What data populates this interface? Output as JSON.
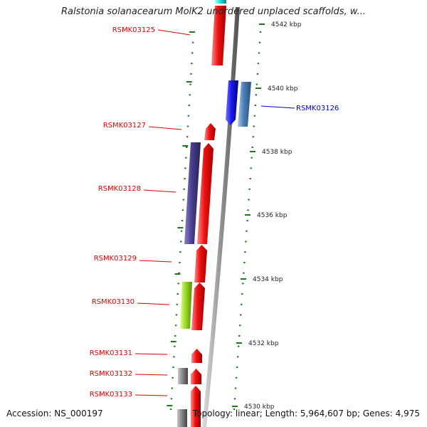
{
  "title": "Ralstonia solanacearum MolK2 unordered unplaced scaffolds, w...",
  "footer": {
    "accession": "Accession: NS_000197",
    "topology": "Topology: linear; Length: 5,964,607 bp; Genes: 4,975"
  },
  "scale": {
    "unit": "kbp",
    "ticks": [
      "4542 kbp",
      "4540 kbp",
      "4538 kbp",
      "4536 kbp",
      "4534 kbp",
      "4532 kbp",
      "4530 kbp"
    ]
  },
  "gene_labels": [
    {
      "name": "RSMK03125",
      "color": "#dd0000"
    },
    {
      "name": "RSMK03126",
      "color": "#0000cc"
    },
    {
      "name": "RSMK03127",
      "color": "#dd0000"
    },
    {
      "name": "RSMK03128",
      "color": "#dd0000"
    },
    {
      "name": "RSMK03129",
      "color": "#dd0000"
    },
    {
      "name": "RSMK03130",
      "color": "#dd0000"
    },
    {
      "name": "RSMK03131",
      "color": "#dd0000"
    },
    {
      "name": "RSMK03132",
      "color": "#dd0000"
    },
    {
      "name": "RSMK03133",
      "color": "#dd0000"
    }
  ],
  "colors": {
    "forward_gene": "#ee1111",
    "blue_gene": "#1a1aee",
    "steelblue_gene": "#4a7fb8",
    "indigo_gene": "#4a3f8f",
    "green_gene": "#99dd22",
    "gray_gene": "#888888",
    "cyan_gene": "#22dddd",
    "backbone": "#999999",
    "tick": "#1a7a1a"
  }
}
